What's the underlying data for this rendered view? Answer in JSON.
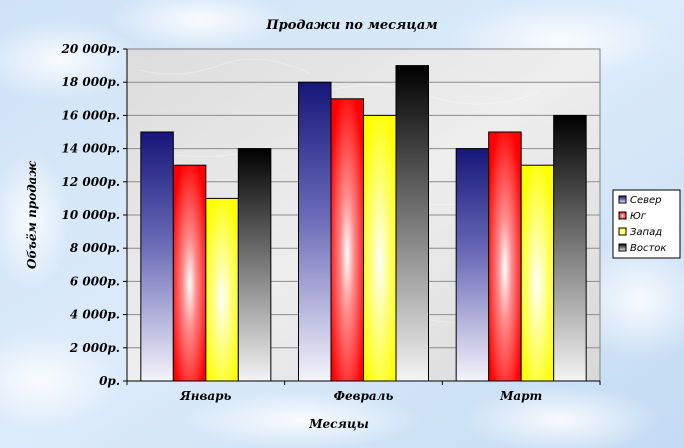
{
  "chart_data": {
    "type": "bar",
    "title": "Продажи по месяцам",
    "xlabel": "Месяцы",
    "ylabel": "Объём продаж",
    "categories": [
      "Январь",
      "Февраль",
      "Март"
    ],
    "series": [
      {
        "name": "Север",
        "values": [
          15000,
          18000,
          14000
        ],
        "color": "#1a1a80"
      },
      {
        "name": "Юг",
        "values": [
          13000,
          17000,
          15000
        ],
        "color": "#ff0000"
      },
      {
        "name": "Запад",
        "values": [
          11000,
          16000,
          13000
        ],
        "color": "#ffff00"
      },
      {
        "name": "Восток",
        "values": [
          14000,
          19000,
          16000
        ],
        "color": "#000000"
      }
    ],
    "ylim": [
      0,
      20000
    ],
    "ytick_values": [
      0,
      2000,
      4000,
      6000,
      8000,
      10000,
      12000,
      14000,
      16000,
      18000,
      20000
    ],
    "ytick_labels": [
      "0р.",
      "2 000р.",
      "4 000р.",
      "6 000р.",
      "8 000р.",
      "10 000р.",
      "12 000р.",
      "14 000р.",
      "16 000р.",
      "18 000р.",
      "20 000р."
    ],
    "grid": true,
    "legend": "right"
  }
}
